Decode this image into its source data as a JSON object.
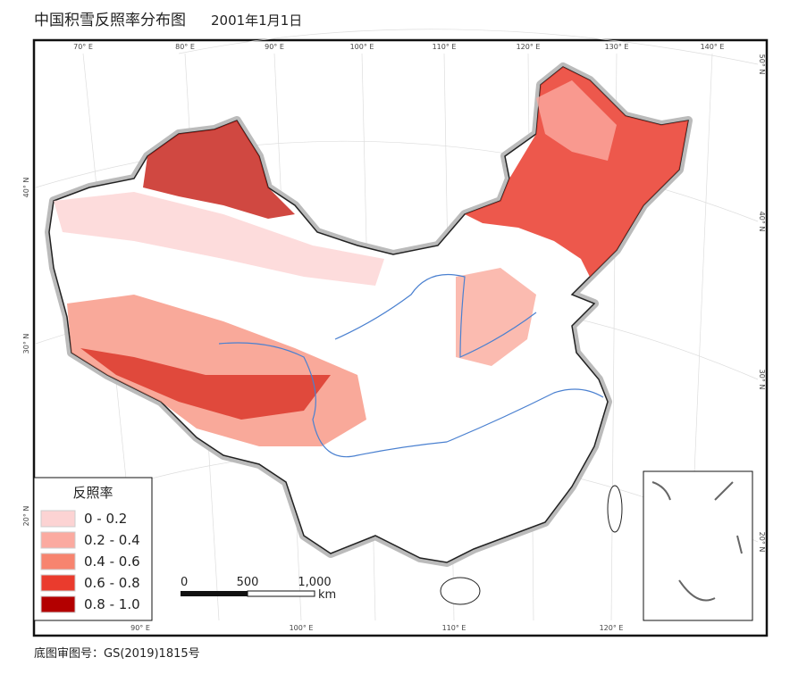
{
  "title": "中国积雪反照率分布图",
  "date": "2001年1月1日",
  "graticule": {
    "top": [
      "70° E",
      "80° E",
      "90° E",
      "100° E",
      "110° E",
      "120° E",
      "130° E",
      "140° E"
    ],
    "bottom": [
      "90° E",
      "100° E",
      "110° E",
      "120° E"
    ],
    "left": [
      "40° N",
      "30° N",
      "20° N"
    ],
    "right": [
      "50° N",
      "40° N",
      "30° N",
      "20° N"
    ]
  },
  "legend": {
    "title": "反照率",
    "items": [
      {
        "label": "0 - 0.2",
        "color": "#fcd3d3"
      },
      {
        "label": "0.2 - 0.4",
        "color": "#fbaaa0"
      },
      {
        "label": "0.4 - 0.6",
        "color": "#f7846f"
      },
      {
        "label": "0.6 - 0.8",
        "color": "#ea3b2d"
      },
      {
        "label": "0.8 - 1.0",
        "color": "#b30000"
      }
    ]
  },
  "scale_bar": {
    "labels": [
      "0",
      "500",
      "1,000"
    ],
    "unit": "km"
  },
  "footer": "底图审图号：GS(2019)1815号"
}
